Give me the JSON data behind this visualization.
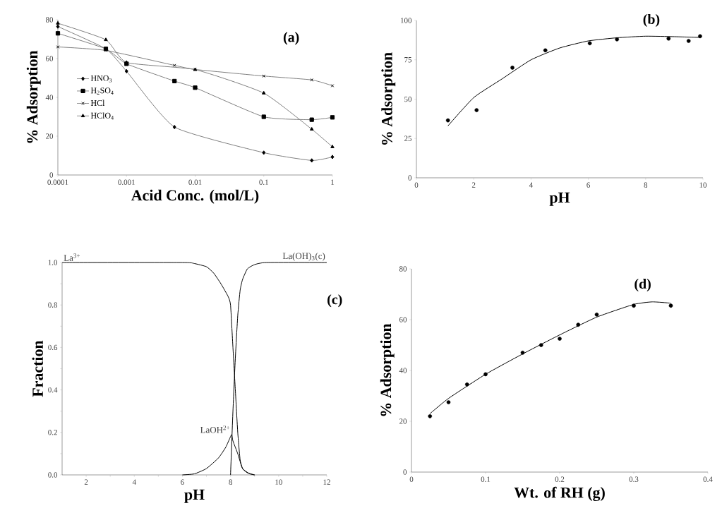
{
  "chart_data": [
    {
      "type": "line",
      "xlabel": "Acid Conc. (mol/L)",
      "ylabel": "% Adsorption",
      "annotations": [
        "(a)"
      ],
      "log": "x",
      "xlim": [
        0.0001,
        1
      ],
      "ylim": [
        0,
        80
      ],
      "xticks": [
        0.0001,
        0.001,
        0.01,
        0.1,
        1
      ],
      "yticks": [
        0,
        20,
        40,
        60,
        80
      ],
      "legend": "left",
      "series": [
        {
          "name": "HNO$_{3}$",
          "color": "#000000",
          "marker": "diamond",
          "x": [
            0.0001,
            0.0005,
            0.001,
            0.005,
            0.1,
            0.5,
            1
          ],
          "values": [
            76.5,
            65,
            53.5,
            24.7,
            11.5,
            7.5,
            9.3
          ]
        },
        {
          "name": "H$_{2}$SO$_{4}$",
          "color": "#000000",
          "marker": "square",
          "x": [
            0.0001,
            0.0005,
            0.001,
            0.005,
            0.01,
            0.1,
            0.5,
            1
          ],
          "values": [
            73,
            65,
            57.3,
            48.4,
            45,
            30,
            28.5,
            29.7
          ]
        },
        {
          "name": "HCl",
          "color": "#000000",
          "marker": "cross",
          "x": [
            0.0001,
            0.0005,
            0.005,
            0.01,
            0.1,
            0.5,
            1
          ],
          "values": [
            66,
            64.2,
            56.5,
            54.4,
            51,
            49,
            46
          ]
        },
        {
          "name": "HClO$_{4}$",
          "color": "#000000",
          "marker": "triangle",
          "x": [
            0.0001,
            0.0005,
            0.001,
            0.01,
            0.1,
            0.5,
            1
          ],
          "values": [
            78.2,
            69.7,
            58,
            54.3,
            42.2,
            23.6,
            14.5
          ]
        }
      ]
    },
    {
      "type": "scatter",
      "xlabel": "pH",
      "ylabel": "% Adsorption",
      "annotations": [
        "(b)"
      ],
      "xlim": [
        0,
        10
      ],
      "ylim": [
        0,
        100
      ],
      "xticks": [
        0,
        2,
        4,
        6,
        8,
        10
      ],
      "yticks": [
        0,
        25,
        50,
        75,
        100
      ],
      "series": [
        {
          "type": "scatter",
          "color": "#000000",
          "marker": "circle",
          "x": [
            1.1,
            2.1,
            3.35,
            4.5,
            6.05,
            7.0,
            8.8,
            9.5,
            9.9
          ],
          "values": [
            36.5,
            43,
            70,
            81,
            85.5,
            88,
            88.5,
            87,
            90
          ]
        },
        {
          "type": "line",
          "color": "#000000",
          "x": [
            1.1,
            2,
            3,
            4,
            5,
            6,
            7,
            8,
            9,
            9.9
          ],
          "values": [
            33,
            51,
            63,
            75,
            82.5,
            87,
            89,
            90,
            89.7,
            89.2
          ]
        }
      ]
    },
    {
      "type": "line",
      "xlabel": "pH",
      "ylabel": "Fraction",
      "annotations": [
        "(c)"
      ],
      "xlim": [
        1,
        12
      ],
      "ylim": [
        0,
        1
      ],
      "xticks": [
        {
          "value": 2,
          "label": "2"
        },
        {
          "value": 3,
          "label": null
        },
        {
          "value": 4,
          "label": "4"
        },
        {
          "value": 5,
          "label": null
        },
        {
          "value": 6,
          "label": "6"
        },
        {
          "value": 7,
          "label": null
        },
        {
          "value": 8,
          "label": "8"
        },
        {
          "value": 9,
          "label": null
        },
        {
          "value": 10,
          "label": "10"
        },
        {
          "value": 11,
          "label": null
        },
        {
          "value": 12,
          "label": "12"
        }
      ],
      "yticks": [
        {
          "value": 0,
          "label": "0.0"
        },
        {
          "value": 0.1,
          "label": null
        },
        0.2,
        {
          "value": 0.3,
          "label": null
        },
        0.4,
        {
          "value": 0.5,
          "label": null
        },
        0.6,
        {
          "value": 0.7,
          "label": null
        },
        0.8,
        {
          "value": 0.9,
          "label": null
        },
        {
          "value": 1,
          "label": "1.0"
        }
      ],
      "series": [
        {
          "name": "La$^{3+}$",
          "color": "#000000",
          "x": [
            1,
            6,
            6.5,
            7,
            7.3,
            7.6,
            7.9,
            8.0,
            8.1,
            8.2,
            8.3,
            8.4,
            8.5,
            8.7,
            9
          ],
          "values": [
            1,
            1,
            0.995,
            0.98,
            0.95,
            0.9,
            0.84,
            0.8,
            0.6,
            0.4,
            0.2,
            0.07,
            0.03,
            0.01,
            0
          ]
        },
        {
          "name": "LaOH$^{2+}$",
          "color": "#000000",
          "x": [
            6,
            6.5,
            7,
            7.5,
            7.8,
            8.0,
            8.05,
            8.1,
            8.3,
            8.5,
            8.8,
            9
          ],
          "values": [
            0,
            0.005,
            0.03,
            0.08,
            0.13,
            0.18,
            0.19,
            0.16,
            0.1,
            0.03,
            0.005,
            0
          ]
        },
        {
          "name": "La(OH)$_{3}$(c)",
          "color": "#000000",
          "x": [
            8.0,
            8.1,
            8.2,
            8.3,
            8.4,
            8.5,
            8.7,
            9,
            9.5,
            12
          ],
          "values": [
            0,
            0.3,
            0.55,
            0.75,
            0.87,
            0.92,
            0.97,
            0.99,
            1,
            1
          ]
        }
      ]
    },
    {
      "type": "scatter",
      "xlabel": "Wt. of RH (g)",
      "ylabel": "% Adsorption",
      "annotations": [
        "(d)"
      ],
      "xlim": [
        0,
        0.4
      ],
      "ylim": [
        0,
        80
      ],
      "xticks": [
        0,
        0.1,
        0.2,
        0.3,
        0.4
      ],
      "yticks": [
        0,
        20,
        40,
        60,
        80
      ],
      "series": [
        {
          "type": "scatter",
          "color": "#000000",
          "marker": "circle",
          "x": [
            0.025,
            0.05,
            0.075,
            0.1,
            0.15,
            0.175,
            0.2,
            0.225,
            0.25,
            0.3,
            0.35
          ],
          "values": [
            22,
            27.5,
            34.5,
            38.5,
            47,
            50,
            52.5,
            58,
            62,
            65.5,
            65.5
          ]
        },
        {
          "type": "line",
          "color": "#000000",
          "x": [
            0.025,
            0.05,
            0.1,
            0.15,
            0.2,
            0.25,
            0.3,
            0.325,
            0.35
          ],
          "values": [
            23,
            29,
            38.5,
            46.5,
            54,
            61,
            66,
            67,
            66.5
          ]
        }
      ]
    }
  ]
}
